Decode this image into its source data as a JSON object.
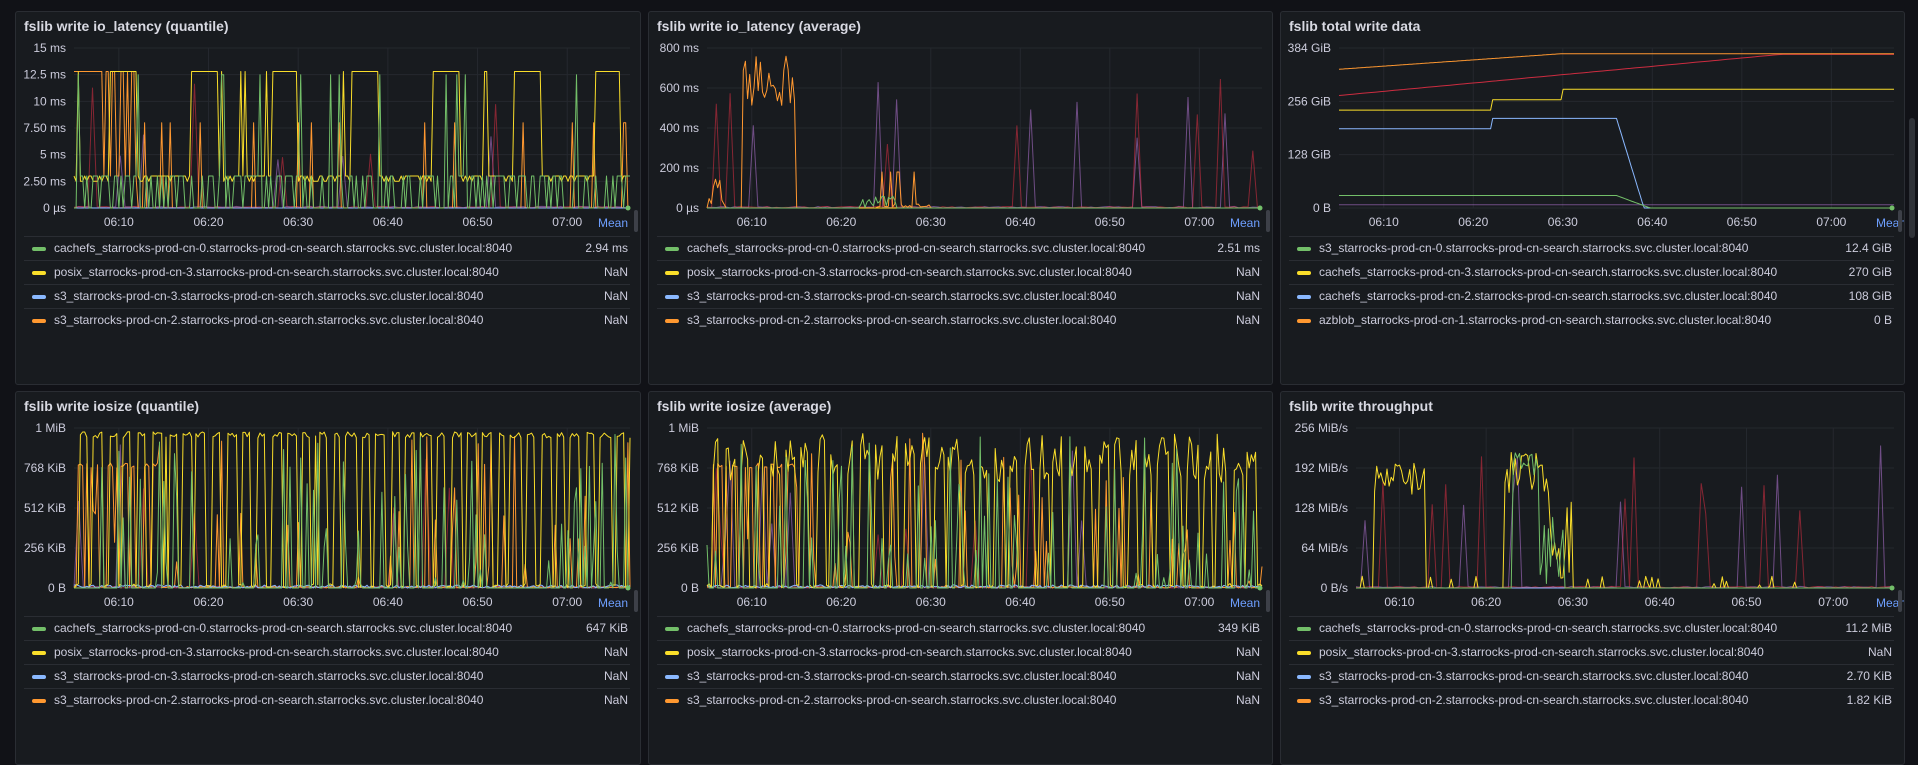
{
  "time_ticks": [
    "06:10",
    "06:20",
    "06:30",
    "06:40",
    "06:50",
    "07:00"
  ],
  "mean_header": "Mean",
  "panels": [
    {
      "title": "fslib write io_latency (quantile)",
      "chart_data": {
        "type": "line",
        "title": "fslib write io_latency (quantile)",
        "x": [
          "06:10",
          "06:20",
          "06:30",
          "06:40",
          "06:50",
          "07:00"
        ],
        "y_ticks": [
          "0 µs",
          "2.50 ms",
          "5 ms",
          "7.50 ms",
          "10 ms",
          "12.5 ms",
          "15 ms"
        ],
        "ylim": [
          0,
          15
        ],
        "y_unit": "ms",
        "series": [
          {
            "name": "cachefs_starrocks-prod-cn-0.starrocks-prod-cn-search.starrocks.svc.cluster.local:8040",
            "color": "#73bf69",
            "mean": "2.94 ms"
          },
          {
            "name": "posix_starrocks-prod-cn-3.starrocks-prod-cn-search.starrocks.svc.cluster.local:8040",
            "color": "#fade2a",
            "mean": "NaN"
          },
          {
            "name": "s3_starrocks-prod-cn-3.starrocks-prod-cn-search.starrocks.svc.cluster.local:8040",
            "color": "#8ab8ff",
            "mean": "NaN"
          },
          {
            "name": "s3_starrocks-prod-cn-2.starrocks-prod-cn-search.starrocks.svc.cluster.local:8040",
            "color": "#ff9830",
            "mean": "NaN"
          }
        ]
      }
    },
    {
      "title": "fslib write io_latency (average)",
      "chart_data": {
        "type": "line",
        "title": "fslib write io_latency (average)",
        "x": [
          "06:10",
          "06:20",
          "06:30",
          "06:40",
          "06:50",
          "07:00"
        ],
        "y_ticks": [
          "0 µs",
          "200 ms",
          "400 ms",
          "600 ms",
          "800 ms"
        ],
        "ylim": [
          0,
          800
        ],
        "y_unit": "ms",
        "series": [
          {
            "name": "cachefs_starrocks-prod-cn-0.starrocks-prod-cn-search.starrocks.svc.cluster.local:8040",
            "color": "#73bf69",
            "mean": "2.51 ms"
          },
          {
            "name": "posix_starrocks-prod-cn-3.starrocks-prod-cn-search.starrocks.svc.cluster.local:8040",
            "color": "#fade2a",
            "mean": "NaN"
          },
          {
            "name": "s3_starrocks-prod-cn-3.starrocks-prod-cn-search.starrocks.svc.cluster.local:8040",
            "color": "#8ab8ff",
            "mean": "NaN"
          },
          {
            "name": "s3_starrocks-prod-cn-2.starrocks-prod-cn-search.starrocks.svc.cluster.local:8040",
            "color": "#ff9830",
            "mean": "NaN"
          }
        ]
      }
    },
    {
      "title": "fslib total write data",
      "chart_data": {
        "type": "line",
        "title": "fslib total write data",
        "x": [
          "06:10",
          "06:20",
          "06:30",
          "06:40",
          "06:50",
          "07:00"
        ],
        "y_ticks": [
          "0 B",
          "128 GiB",
          "256 GiB",
          "384 GiB"
        ],
        "ylim": [
          0,
          384
        ],
        "y_unit": "GiB",
        "series": [
          {
            "name": "s3_starrocks-prod-cn-0.starrocks-prod-cn-search.starrocks.svc.cluster.local:8040",
            "color": "#73bf69",
            "mean": "12.4 GiB"
          },
          {
            "name": "cachefs_starrocks-prod-cn-3.starrocks-prod-cn-search.starrocks.svc.cluster.local:8040",
            "color": "#fade2a",
            "mean": "270 GiB"
          },
          {
            "name": "cachefs_starrocks-prod-cn-2.starrocks-prod-cn-search.starrocks.svc.cluster.local:8040",
            "color": "#8ab8ff",
            "mean": "108 GiB"
          },
          {
            "name": "azblob_starrocks-prod-cn-1.starrocks-prod-cn-search.starrocks.svc.cluster.local:8040",
            "color": "#ff9830",
            "mean": "0 B"
          }
        ]
      }
    },
    {
      "title": "fslib write iosize (quantile)",
      "chart_data": {
        "type": "line",
        "title": "fslib write iosize (quantile)",
        "x": [
          "06:10",
          "06:20",
          "06:30",
          "06:40",
          "06:50",
          "07:00"
        ],
        "y_ticks": [
          "0 B",
          "256 KiB",
          "512 KiB",
          "768 KiB",
          "1 MiB"
        ],
        "ylim": [
          0,
          1024
        ],
        "y_unit": "KiB",
        "series": [
          {
            "name": "cachefs_starrocks-prod-cn-0.starrocks-prod-cn-search.starrocks.svc.cluster.local:8040",
            "color": "#73bf69",
            "mean": "647 KiB"
          },
          {
            "name": "posix_starrocks-prod-cn-3.starrocks-prod-cn-search.starrocks.svc.cluster.local:8040",
            "color": "#fade2a",
            "mean": "NaN"
          },
          {
            "name": "s3_starrocks-prod-cn-3.starrocks-prod-cn-search.starrocks.svc.cluster.local:8040",
            "color": "#8ab8ff",
            "mean": "NaN"
          },
          {
            "name": "s3_starrocks-prod-cn-2.starrocks-prod-cn-search.starrocks.svc.cluster.local:8040",
            "color": "#ff9830",
            "mean": "NaN"
          }
        ]
      }
    },
    {
      "title": "fslib write iosize (average)",
      "chart_data": {
        "type": "line",
        "title": "fslib write iosize (average)",
        "x": [
          "06:10",
          "06:20",
          "06:30",
          "06:40",
          "06:50",
          "07:00"
        ],
        "y_ticks": [
          "0 B",
          "256 KiB",
          "512 KiB",
          "768 KiB",
          "1 MiB"
        ],
        "ylim": [
          0,
          1024
        ],
        "y_unit": "KiB",
        "series": [
          {
            "name": "cachefs_starrocks-prod-cn-0.starrocks-prod-cn-search.starrocks.svc.cluster.local:8040",
            "color": "#73bf69",
            "mean": "349 KiB"
          },
          {
            "name": "posix_starrocks-prod-cn-3.starrocks-prod-cn-search.starrocks.svc.cluster.local:8040",
            "color": "#fade2a",
            "mean": "NaN"
          },
          {
            "name": "s3_starrocks-prod-cn-3.starrocks-prod-cn-search.starrocks.svc.cluster.local:8040",
            "color": "#8ab8ff",
            "mean": "NaN"
          },
          {
            "name": "s3_starrocks-prod-cn-2.starrocks-prod-cn-search.starrocks.svc.cluster.local:8040",
            "color": "#ff9830",
            "mean": "NaN"
          }
        ]
      }
    },
    {
      "title": "fslib write throughput",
      "chart_data": {
        "type": "line",
        "title": "fslib write throughput",
        "x": [
          "06:10",
          "06:20",
          "06:30",
          "06:40",
          "06:50",
          "07:00"
        ],
        "y_ticks": [
          "0 B/s",
          "64 MiB/s",
          "128 MiB/s",
          "192 MiB/s",
          "256 MiB/s"
        ],
        "ylim": [
          0,
          256
        ],
        "y_unit": "MiB/s",
        "series": [
          {
            "name": "cachefs_starrocks-prod-cn-0.starrocks-prod-cn-search.starrocks.svc.cluster.local:8040",
            "color": "#73bf69",
            "mean": "11.2 MiB"
          },
          {
            "name": "posix_starrocks-prod-cn-3.starrocks-prod-cn-search.starrocks.svc.cluster.local:8040",
            "color": "#fade2a",
            "mean": "NaN"
          },
          {
            "name": "s3_starrocks-prod-cn-3.starrocks-prod-cn-search.starrocks.svc.cluster.local:8040",
            "color": "#8ab8ff",
            "mean": "2.70 KiB"
          },
          {
            "name": "s3_starrocks-prod-cn-2.starrocks-prod-cn-search.starrocks.svc.cluster.local:8040",
            "color": "#ff9830",
            "mean": "1.82 KiB"
          }
        ]
      }
    }
  ]
}
